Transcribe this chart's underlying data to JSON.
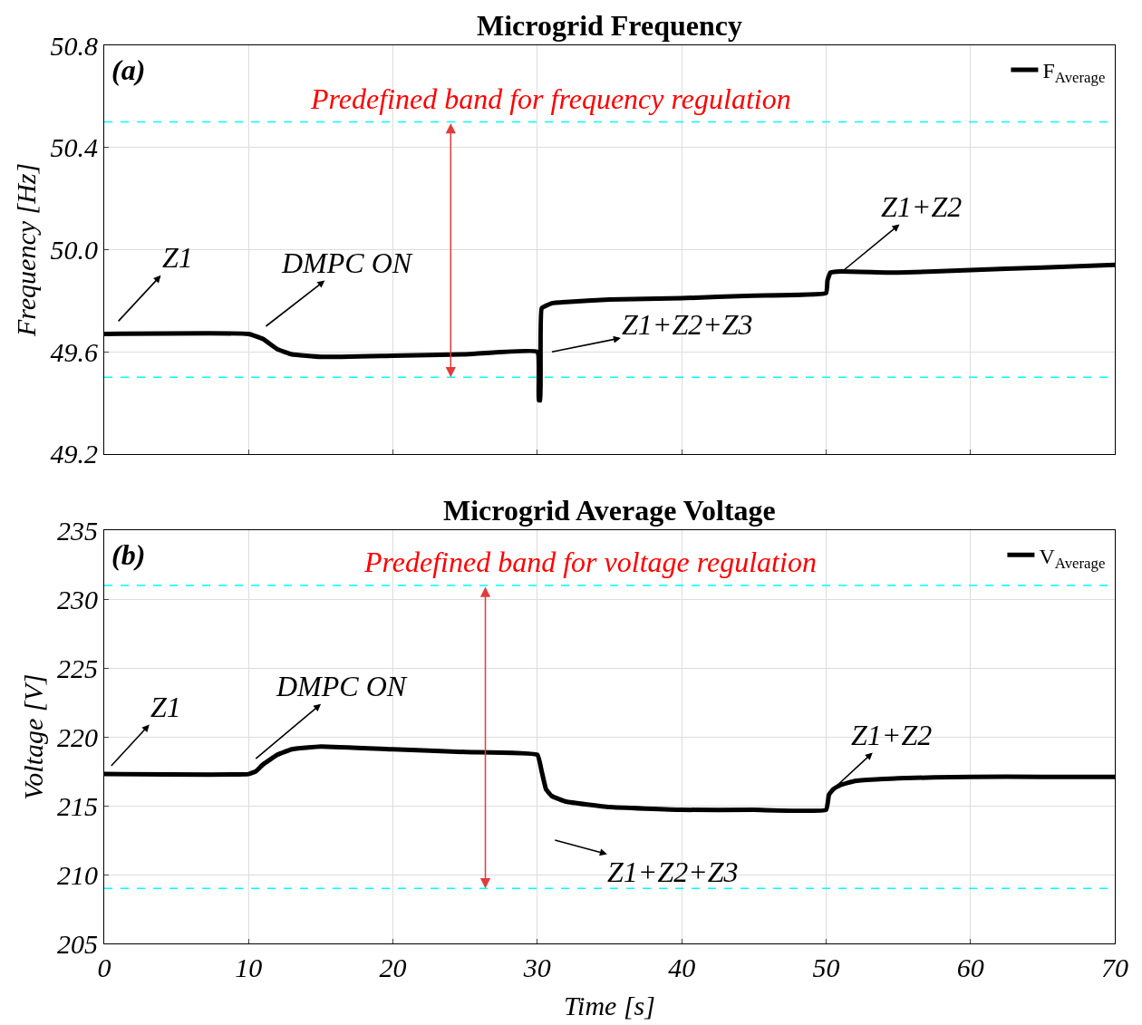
{
  "chart_data": [
    {
      "type": "line",
      "title": "Microgrid Frequency",
      "ylabel": "Frequency [Hz]",
      "series": [
        {
          "name": "F$_{Average}$",
          "color": "#000000",
          "x": [
            0,
            10,
            11,
            12,
            13,
            15,
            20,
            25,
            30,
            30.1,
            30.2,
            30.3,
            31,
            32,
            35,
            40,
            45,
            50,
            50.1,
            50.3,
            51,
            55,
            60,
            65,
            70
          ],
          "values": [
            49.67,
            49.67,
            49.65,
            49.61,
            49.59,
            49.58,
            49.585,
            49.59,
            49.6,
            49.41,
            49.41,
            49.77,
            49.79,
            49.795,
            49.805,
            49.81,
            49.82,
            49.83,
            49.88,
            49.91,
            49.915,
            49.91,
            49.92,
            49.93,
            49.94
          ]
        }
      ],
      "xlim": [
        0,
        70
      ],
      "xticks": [
        0,
        10,
        20,
        30,
        40,
        50,
        60,
        70
      ],
      "ylim": [
        49.2,
        50.8
      ],
      "yticks": [
        {
          "value": 49.2,
          "label": "49.2"
        },
        {
          "value": 49.6,
          "label": "49.6"
        },
        {
          "value": 50.0,
          "label": "50.0"
        },
        {
          "value": 50.4,
          "label": "50.4"
        },
        {
          "value": 50.8,
          "label": "50.8"
        }
      ],
      "ref_lines": [
        {
          "axis": "y",
          "value": 50.5,
          "color": "#00ffff",
          "line_style": "dashed"
        },
        {
          "axis": "y",
          "value": 49.5,
          "color": "#00ffff",
          "line_style": "dashed"
        }
      ],
      "annotations": [
        "(a)",
        {
          "text": "Predefined band for frequency regulation",
          "x": 24,
          "y": 50.5
        },
        "Z1",
        "DMPC ON",
        "Z1+Z2+Z3",
        "Z1+Z2"
      ],
      "grid": true,
      "legend": "top right",
      "tick_labels": "y"
    },
    {
      "type": "line",
      "title": "Microgrid Average Voltage",
      "xlabel": "Time [s]",
      "ylabel": "Voltage [V]",
      "series": [
        {
          "name": "V$_{Average}$",
          "color": "#000000",
          "x": [
            0,
            10,
            10.5,
            11,
            12,
            13,
            15,
            20,
            25,
            30,
            30.3,
            30.6,
            31,
            32,
            35,
            40,
            45,
            50,
            50.2,
            50.5,
            51,
            52,
            55,
            60,
            65,
            70
          ],
          "values": [
            217.3,
            217.3,
            217.5,
            218.0,
            218.7,
            219.1,
            219.3,
            219.1,
            218.9,
            218.7,
            217.5,
            216.2,
            215.7,
            215.3,
            214.9,
            214.7,
            214.7,
            214.7,
            215.8,
            216.2,
            216.5,
            216.8,
            217.0,
            217.1,
            217.1,
            217.1
          ]
        }
      ],
      "xlim": [
        0,
        70
      ],
      "xticks": [
        0,
        10,
        20,
        30,
        40,
        50,
        60,
        70
      ],
      "ylim": [
        205,
        235
      ],
      "yticks": [
        205,
        210,
        215,
        220,
        225,
        230,
        235
      ],
      "ref_lines": [
        {
          "axis": "y",
          "value": 231,
          "color": "#00ffff",
          "line_style": "dashed"
        },
        {
          "axis": "y",
          "value": 209,
          "color": "#00ffff",
          "line_style": "dashed"
        }
      ],
      "annotations": [
        "(b)",
        {
          "text": "Predefined band for voltage regulation",
          "x": 26.4,
          "y": 231
        },
        "Z1",
        "DMPC ON",
        "Z1+Z2+Z3",
        "Z1+Z2"
      ],
      "grid": true,
      "legend": "top right"
    }
  ]
}
